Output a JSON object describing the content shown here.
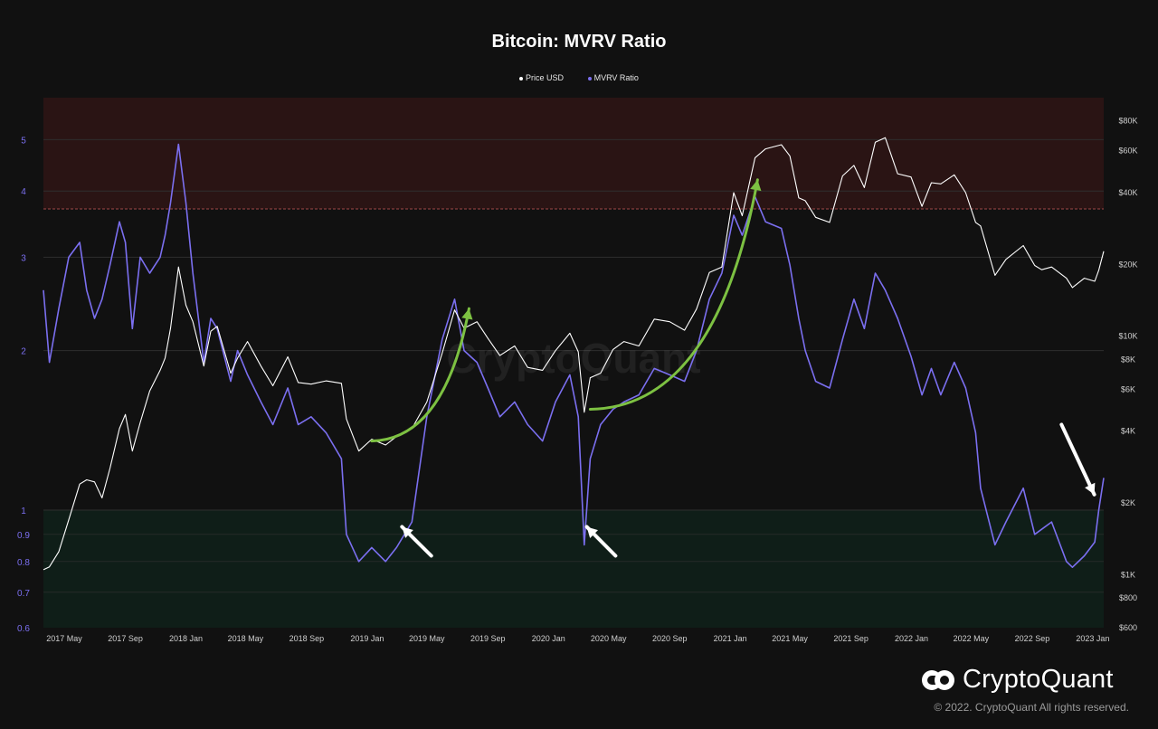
{
  "header": {
    "title": "Bitcoin: MVRV Ratio"
  },
  "legend": {
    "items": [
      {
        "label": "Price USD",
        "color": "#ffffff"
      },
      {
        "label": "MVRV Ratio",
        "color": "#7b6ff0"
      }
    ]
  },
  "watermark": "CryptoQuant",
  "brand": {
    "name": "CryptoQuant",
    "copyright": "© 2022. CryptoQuant All rights reserved."
  },
  "colors": {
    "background": "#111111",
    "mvrv": "#7b6ff0",
    "price": "#ffffff",
    "arrow_green": "#7dc142",
    "top_zone": "#2a1414",
    "bottom_zone": "#0f1e18"
  },
  "chart_data": {
    "type": "line",
    "title": "Bitcoin: MVRV Ratio",
    "xlabel": "",
    "ylabel": "",
    "x_ticks": [
      "2017 May",
      "2017 Sep",
      "2018 Jan",
      "2018 May",
      "2018 Sep",
      "2019 Jan",
      "2019 May",
      "2019 Sep",
      "2020 Jan",
      "2020 May",
      "2020 Sep",
      "2021 Jan",
      "2021 May",
      "2021 Sep",
      "2022 Jan",
      "2022 May",
      "2022 Sep",
      "2023 Jan"
    ],
    "x_range": [
      "2017-03-20",
      "2023-01-23"
    ],
    "y_left": {
      "scale": "log",
      "ticks": [
        0.6,
        0.7,
        0.8,
        0.9,
        1,
        2,
        3,
        4,
        5
      ],
      "tick_labels": [
        "0.6",
        "0.7",
        "0.8",
        "0.9",
        "1",
        "2",
        "3",
        "4",
        "5"
      ],
      "range": [
        0.6,
        6.0
      ]
    },
    "y_right": {
      "scale": "log",
      "ticks": [
        600,
        800,
        1000,
        2000,
        4000,
        6000,
        8000,
        10000,
        20000,
        40000,
        60000,
        80000
      ],
      "tick_labels": [
        "$600",
        "$800",
        "$1K",
        "$2K",
        "$4K",
        "$6K",
        "$8K",
        "$10K",
        "$20K",
        "$40K",
        "$60K",
        "$80K"
      ],
      "range": [
        600,
        100000
      ]
    },
    "zones": [
      {
        "name": "overvalued",
        "from": 3.7,
        "to": 6.0,
        "color": "#2a1414",
        "boundary_color": "#a04848"
      },
      {
        "name": "undervalued",
        "from": 0.6,
        "to": 1.0,
        "color": "#0f1e18",
        "boundary_color": "#4f8a3c"
      }
    ],
    "series": [
      {
        "name": "MVRV Ratio",
        "axis": "left",
        "color": "#7b6ff0",
        "x": [
          "2017-03-20",
          "2017-04-01",
          "2017-04-20",
          "2017-05-10",
          "2017-06-01",
          "2017-06-15",
          "2017-07-01",
          "2017-07-16",
          "2017-08-01",
          "2017-08-20",
          "2017-09-01",
          "2017-09-15",
          "2017-10-01",
          "2017-10-20",
          "2017-11-10",
          "2017-11-20",
          "2017-12-01",
          "2017-12-17",
          "2018-01-01",
          "2018-01-15",
          "2018-02-06",
          "2018-02-20",
          "2018-03-05",
          "2018-04-01",
          "2018-04-15",
          "2018-05-05",
          "2018-06-01",
          "2018-06-25",
          "2018-07-25",
          "2018-08-15",
          "2018-09-10",
          "2018-10-10",
          "2018-11-10",
          "2018-11-20",
          "2018-12-15",
          "2019-01-10",
          "2019-02-07",
          "2019-03-01",
          "2019-04-01",
          "2019-05-01",
          "2019-06-01",
          "2019-06-26",
          "2019-07-15",
          "2019-08-10",
          "2019-09-01",
          "2019-09-25",
          "2019-10-25",
          "2019-11-20",
          "2019-12-20",
          "2020-01-15",
          "2020-02-13",
          "2020-03-01",
          "2020-03-13",
          "2020-03-25",
          "2020-04-15",
          "2020-05-10",
          "2020-06-01",
          "2020-07-01",
          "2020-08-01",
          "2020-09-01",
          "2020-10-01",
          "2020-10-25",
          "2020-11-20",
          "2020-12-15",
          "2021-01-08",
          "2021-01-25",
          "2021-02-20",
          "2021-03-13",
          "2021-04-14",
          "2021-05-01",
          "2021-05-19",
          "2021-06-01",
          "2021-06-22",
          "2021-07-20",
          "2021-08-15",
          "2021-09-07",
          "2021-09-28",
          "2021-10-20",
          "2021-11-09",
          "2021-12-04",
          "2021-12-31",
          "2022-01-22",
          "2022-02-10",
          "2022-03-01",
          "2022-03-28",
          "2022-04-20",
          "2022-05-10",
          "2022-05-20",
          "2022-06-18",
          "2022-07-10",
          "2022-08-14",
          "2022-09-06",
          "2022-09-20",
          "2022-10-10",
          "2022-11-09",
          "2022-11-21",
          "2022-12-15",
          "2023-01-05",
          "2023-01-13",
          "2023-01-23"
        ],
        "y": [
          2.6,
          1.9,
          2.4,
          3.0,
          3.2,
          2.6,
          2.3,
          2.5,
          2.9,
          3.5,
          3.2,
          2.2,
          3.0,
          2.8,
          3.0,
          3.3,
          3.8,
          4.9,
          3.8,
          2.8,
          1.9,
          2.3,
          2.2,
          1.75,
          2.0,
          1.8,
          1.6,
          1.45,
          1.7,
          1.45,
          1.5,
          1.4,
          1.25,
          0.9,
          0.8,
          0.85,
          0.8,
          0.85,
          0.95,
          1.5,
          2.1,
          2.5,
          2.0,
          1.9,
          1.7,
          1.5,
          1.6,
          1.45,
          1.35,
          1.6,
          1.8,
          1.5,
          0.86,
          1.25,
          1.45,
          1.55,
          1.6,
          1.65,
          1.85,
          1.8,
          1.75,
          2.0,
          2.5,
          2.8,
          3.6,
          3.3,
          3.9,
          3.5,
          3.4,
          2.9,
          2.3,
          2.0,
          1.75,
          1.7,
          2.1,
          2.5,
          2.2,
          2.8,
          2.6,
          2.3,
          1.95,
          1.65,
          1.85,
          1.65,
          1.9,
          1.7,
          1.4,
          1.1,
          0.86,
          0.95,
          1.1,
          0.9,
          0.92,
          0.95,
          0.8,
          0.78,
          0.82,
          0.87,
          1.0,
          1.15
        ]
      },
      {
        "name": "Price USD",
        "axis": "right",
        "color": "#ffffff",
        "x": [
          "2017-03-20",
          "2017-04-01",
          "2017-04-20",
          "2017-05-10",
          "2017-06-01",
          "2017-06-15",
          "2017-07-01",
          "2017-07-16",
          "2017-08-01",
          "2017-08-20",
          "2017-09-01",
          "2017-09-15",
          "2017-10-01",
          "2017-10-20",
          "2017-11-10",
          "2017-11-20",
          "2017-12-01",
          "2017-12-17",
          "2018-01-01",
          "2018-01-15",
          "2018-02-06",
          "2018-02-20",
          "2018-03-05",
          "2018-04-01",
          "2018-04-15",
          "2018-05-05",
          "2018-06-01",
          "2018-06-25",
          "2018-07-25",
          "2018-08-15",
          "2018-09-10",
          "2018-10-10",
          "2018-11-10",
          "2018-11-20",
          "2018-12-15",
          "2019-01-10",
          "2019-02-07",
          "2019-03-01",
          "2019-04-01",
          "2019-05-01",
          "2019-06-01",
          "2019-06-26",
          "2019-07-15",
          "2019-08-10",
          "2019-09-01",
          "2019-09-25",
          "2019-10-25",
          "2019-11-20",
          "2019-12-20",
          "2020-01-15",
          "2020-02-13",
          "2020-03-01",
          "2020-03-13",
          "2020-03-25",
          "2020-04-15",
          "2020-05-10",
          "2020-06-01",
          "2020-07-01",
          "2020-08-01",
          "2020-09-01",
          "2020-10-01",
          "2020-10-25",
          "2020-11-20",
          "2020-12-15",
          "2021-01-08",
          "2021-01-25",
          "2021-02-20",
          "2021-03-13",
          "2021-04-14",
          "2021-05-01",
          "2021-05-19",
          "2021-06-01",
          "2021-06-22",
          "2021-07-20",
          "2021-08-15",
          "2021-09-07",
          "2021-09-28",
          "2021-10-20",
          "2021-11-09",
          "2021-12-04",
          "2021-12-31",
          "2022-01-22",
          "2022-02-10",
          "2022-03-01",
          "2022-03-28",
          "2022-04-20",
          "2022-05-10",
          "2022-05-20",
          "2022-06-18",
          "2022-07-10",
          "2022-08-14",
          "2022-09-06",
          "2022-09-20",
          "2022-10-10",
          "2022-11-09",
          "2022-11-21",
          "2022-12-15",
          "2023-01-05",
          "2023-01-13",
          "2023-01-23"
        ],
        "y": [
          1050,
          1080,
          1250,
          1700,
          2400,
          2500,
          2450,
          2100,
          2800,
          4100,
          4700,
          3300,
          4350,
          5900,
          7200,
          8100,
          10800,
          19500,
          13500,
          11500,
          7500,
          10500,
          11000,
          7000,
          8100,
          9500,
          7500,
          6200,
          8200,
          6400,
          6300,
          6500,
          6350,
          4500,
          3300,
          3700,
          3500,
          3800,
          4100,
          5300,
          8500,
          12900,
          10800,
          11500,
          9800,
          8300,
          9100,
          7400,
          7200,
          8700,
          10300,
          8600,
          4800,
          6700,
          7000,
          8800,
          9500,
          9100,
          11800,
          11500,
          10600,
          13000,
          18500,
          19500,
          40000,
          32000,
          56000,
          61000,
          63500,
          57000,
          38000,
          37000,
          31500,
          30000,
          47000,
          52000,
          42000,
          65000,
          68000,
          48000,
          46500,
          35000,
          44000,
          43500,
          47500,
          40000,
          30000,
          29000,
          18000,
          21000,
          24000,
          19800,
          19000,
          19500,
          17500,
          16000,
          17500,
          17000,
          18900,
          22700
        ]
      }
    ],
    "annotations": [
      {
        "type": "arrow",
        "color": "#7dc142",
        "shape": "curved",
        "from": {
          "x": "2019-01-10",
          "y": 1.35
        },
        "to": {
          "x": "2019-07-25",
          "y": 2.4
        }
      },
      {
        "type": "arrow",
        "color": "#7dc142",
        "shape": "curved",
        "from": {
          "x": "2020-03-25",
          "y": 1.55
        },
        "to": {
          "x": "2021-02-25",
          "y": 4.2
        }
      },
      {
        "type": "arrow",
        "color": "#ffffff",
        "shape": "straight",
        "from": {
          "x": "2019-05-10",
          "y": 0.82
        },
        "to": {
          "x": "2019-03-12",
          "y": 0.93
        }
      },
      {
        "type": "arrow",
        "color": "#ffffff",
        "shape": "straight",
        "from": {
          "x": "2020-05-15",
          "y": 0.82
        },
        "to": {
          "x": "2020-03-18",
          "y": 0.93
        }
      },
      {
        "type": "arrow",
        "color": "#ffffff",
        "shape": "straight",
        "from": {
          "x": "2022-10-30",
          "y": 1.45
        },
        "to": {
          "x": "2023-01-04",
          "y": 1.07
        }
      }
    ]
  }
}
